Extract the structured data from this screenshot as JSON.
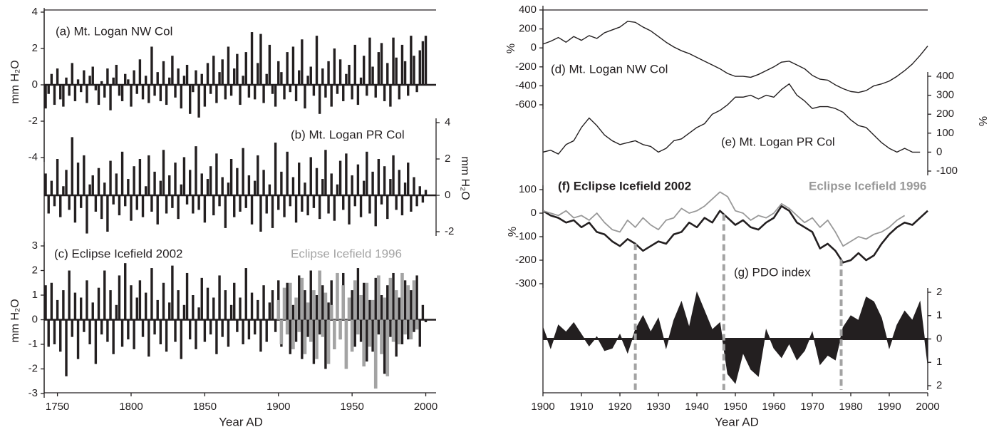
{
  "chart_data": [
    {
      "type": "bar",
      "xlabel": "Year AD",
      "xlim": [
        1741,
        2007
      ],
      "xticks": [
        1750,
        1800,
        1850,
        1900,
        1950,
        2000
      ],
      "x": [
        1742,
        1744,
        1746,
        1748,
        1750,
        1752,
        1754,
        1756,
        1758,
        1760,
        1762,
        1764,
        1766,
        1768,
        1770,
        1772,
        1774,
        1776,
        1778,
        1780,
        1782,
        1784,
        1786,
        1788,
        1790,
        1792,
        1794,
        1796,
        1798,
        1800,
        1802,
        1804,
        1806,
        1808,
        1810,
        1812,
        1814,
        1816,
        1818,
        1820,
        1822,
        1824,
        1826,
        1828,
        1830,
        1832,
        1834,
        1836,
        1838,
        1840,
        1842,
        1844,
        1846,
        1848,
        1850,
        1852,
        1854,
        1856,
        1858,
        1860,
        1862,
        1864,
        1866,
        1868,
        1870,
        1872,
        1874,
        1876,
        1878,
        1880,
        1882,
        1884,
        1886,
        1888,
        1890,
        1892,
        1894,
        1896,
        1898,
        1900,
        1902,
        1904,
        1906,
        1908,
        1910,
        1912,
        1914,
        1916,
        1918,
        1920,
        1922,
        1924,
        1926,
        1928,
        1930,
        1932,
        1934,
        1936,
        1938,
        1940,
        1942,
        1944,
        1946,
        1948,
        1950,
        1952,
        1954,
        1956,
        1958,
        1960,
        1962,
        1964,
        1966,
        1968,
        1970,
        1972,
        1974,
        1976,
        1978,
        1980,
        1982,
        1984,
        1986,
        1988,
        1990,
        1992,
        1994,
        1996,
        1998,
        2000
      ],
      "series": [
        {
          "name": "(a) Mt. Logan NW Col",
          "color": "#231f20",
          "axis": "y",
          "ylabel": "mm H₂O",
          "ylim": [
            -4,
            4
          ],
          "yticks": [
            -4,
            -2,
            0,
            2,
            4
          ],
          "values": [
            -1.3,
            -0.5,
            0.6,
            -1.1,
            0.9,
            -0.8,
            -1.2,
            0.4,
            -0.6,
            1.2,
            -0.9,
            0.3,
            -0.4,
            0.8,
            -1.0,
            0.5,
            1.0,
            -0.3,
            -1.1,
            0.2,
            -0.7,
            0.9,
            -1.4,
            0.4,
            1.1,
            -0.6,
            -0.9,
            0.6,
            0.3,
            -1.2,
            0.8,
            -0.5,
            1.4,
            -0.8,
            0.5,
            -1.0,
            2.1,
            -0.6,
            0.7,
            -0.9,
            1.3,
            -1.1,
            0.4,
            1.6,
            -0.7,
            0.9,
            -1.3,
            0.5,
            1.1,
            -1.6,
            -0.4,
            0.8,
            -1.8,
            0.6,
            -1.2,
            1.2,
            -0.5,
            1.6,
            -1.0,
            0.7,
            1.4,
            -0.8,
            2.1,
            -0.6,
            0.9,
            1.7,
            -1.1,
            0.5,
            1.8,
            -0.7,
            2.9,
            -0.8,
            1.2,
            2.8,
            -1.0,
            0.6,
            2.2,
            -0.5,
            -1.2,
            1.3,
            0.7,
            -0.8,
            1.8,
            -0.4,
            2.1,
            -0.9,
            0.8,
            2.5,
            -1.3,
            0.5,
            1.0,
            -0.6,
            2.7,
            -1.6,
            0.9,
            -0.7,
            1.3,
            -1.2,
            2.0,
            -0.5,
            1.4,
            -0.9,
            0.6,
            1.1,
            -0.8,
            2.2,
            -1.1,
            0.4,
            1.6,
            -0.6,
            2.6,
            1.0,
            -0.7,
            1.8,
            2.3,
            -0.9,
            1.2,
            -1.2,
            2.6,
            1.5,
            -0.8,
            2.2,
            1.3,
            -0.6,
            2.7,
            1.6,
            -0.4,
            1.9,
            2.4,
            2.7
          ]
        },
        {
          "name": "(b) Mt. Logan PR Col",
          "color": "#231f20",
          "axis": "y2",
          "ylabel": "mm H₂O",
          "ylim": [
            -4,
            4
          ],
          "yticks": [
            -2,
            0,
            2,
            4
          ],
          "values": [
            1.2,
            -1.0,
            0.8,
            -0.6,
            2.0,
            -1.2,
            0.5,
            1.4,
            -0.8,
            3.2,
            -1.5,
            1.8,
            -0.7,
            2.2,
            -2.1,
            0.6,
            1.1,
            -0.9,
            1.5,
            -1.3,
            0.7,
            -2.0,
            1.9,
            -0.5,
            1.2,
            -1.1,
            2.4,
            -0.6,
            0.9,
            -1.4,
            1.6,
            -0.8,
            2.0,
            -1.2,
            0.5,
            2.2,
            -0.9,
            1.3,
            -1.6,
            0.8,
            2.5,
            -1.0,
            1.1,
            -0.7,
            1.8,
            -1.3,
            0.6,
            2.1,
            -0.5,
            1.4,
            -1.0,
            2.7,
            -0.8,
            1.2,
            -1.5,
            0.9,
            1.6,
            -1.1,
            2.3,
            -0.6,
            1.0,
            -1.8,
            0.7,
            2.0,
            -1.2,
            1.5,
            -0.9,
            2.6,
            -0.7,
            1.1,
            -1.6,
            0.8,
            2.2,
            -2.0,
            1.4,
            -1.0,
            0.6,
            -1.8,
            2.9,
            -0.8,
            1.3,
            -1.2,
            2.4,
            -0.6,
            1.0,
            -1.5,
            1.8,
            -0.9,
            0.7,
            -1.1,
            2.1,
            -0.7,
            1.5,
            -1.3,
            0.9,
            2.5,
            -1.0,
            1.2,
            -1.4,
            0.6,
            1.9,
            -0.8,
            2.3,
            -1.6,
            1.1,
            -0.6,
            1.7,
            -1.2,
            0.8,
            2.4,
            -1.0,
            1.3,
            -1.7,
            2.0,
            -0.5,
            1.6,
            -1.3,
            0.9,
            2.2,
            -0.8,
            1.4,
            -1.1,
            0.7,
            1.8,
            -0.9,
            1.0,
            -0.6,
            0.5,
            -0.4,
            0.3
          ]
        },
        {
          "name": "(c) Eclipse Icefield 2002",
          "color": "#231f20",
          "axis": "y",
          "ylabel": "mm H₂O",
          "ylim": [
            -3,
            3
          ],
          "yticks": [
            -3,
            -2,
            -1,
            0,
            1,
            2,
            3
          ],
          "values": [
            1.4,
            -1.1,
            1.5,
            -1.0,
            0.8,
            -1.3,
            1.2,
            -2.3,
            2.0,
            -0.7,
            1.1,
            -1.6,
            0.9,
            -0.5,
            1.6,
            -1.0,
            0.7,
            -1.8,
            1.3,
            -0.6,
            2.0,
            -0.9,
            1.2,
            -1.4,
            0.6,
            1.8,
            -1.1,
            2.3,
            -0.8,
            1.4,
            -1.2,
            0.9,
            1.6,
            -0.7,
            1.1,
            -1.5,
            2.1,
            -0.6,
            0.8,
            -1.0,
            1.5,
            -1.3,
            0.7,
            2.2,
            -0.9,
            1.2,
            -1.6,
            0.6,
            1.9,
            -0.8,
            1.0,
            -1.2,
            0.5,
            1.7,
            -0.9,
            1.3,
            -0.6,
            0.9,
            -1.4,
            1.8,
            -0.7,
            1.2,
            -1.1,
            0.6,
            1.5,
            -0.5,
            0.9,
            -1.0,
            2.1,
            -0.8,
            1.1,
            -0.6,
            0.8,
            -1.3,
            1.4,
            -0.9,
            0.7,
            1.2,
            -0.5,
            1.6,
            -1.1,
            0.8,
            1.5,
            -1.4,
            0.6,
            -0.9,
            1.8,
            -1.6,
            1.2,
            -0.7,
            2.0,
            -1.8,
            1.0,
            -0.6,
            1.4,
            -2.0,
            0.7,
            1.6,
            -1.2,
            0.9,
            -0.8,
            1.9,
            -1.5,
            0.6,
            1.2,
            -1.1,
            2.1,
            -0.9,
            1.5,
            -1.7,
            0.8,
            -1.3,
            1.7,
            -0.6,
            1.0,
            -2.2,
            1.4,
            -0.7,
            1.9,
            -1.5,
            0.9,
            -1.0,
            1.6,
            -0.8,
            1.2,
            -0.5,
            1.8,
            -1.1,
            0.6,
            -0.1
          ]
        },
        {
          "name": "Eclipse Icefield 1996",
          "color": "#a3a3a3",
          "x": [
            1900,
            1902,
            1904,
            1906,
            1908,
            1910,
            1912,
            1914,
            1916,
            1918,
            1920,
            1922,
            1924,
            1926,
            1928,
            1930,
            1932,
            1934,
            1936,
            1938,
            1940,
            1942,
            1944,
            1946,
            1948,
            1950,
            1952,
            1954,
            1956,
            1958,
            1960,
            1962,
            1964,
            1966,
            1968,
            1970,
            1972,
            1974,
            1976,
            1978,
            1980,
            1982,
            1984,
            1986,
            1988,
            1990,
            1992,
            1994
          ],
          "values": [
            0.8,
            -1.0,
            1.3,
            -0.6,
            1.5,
            -1.2,
            0.9,
            -0.5,
            1.7,
            -1.4,
            0.7,
            -0.9,
            1.2,
            -1.6,
            2.0,
            -0.7,
            1.1,
            -1.8,
            0.6,
            -1.2,
            1.9,
            -0.8,
            1.4,
            -2.0,
            0.9,
            -1.3,
            1.6,
            -0.6,
            1.0,
            -1.9,
            1.5,
            -1.1,
            0.8,
            -2.8,
            1.8,
            -1.4,
            0.9,
            -2.3,
            1.7,
            -0.9,
            1.2,
            -1.0,
            1.9,
            -0.6,
            1.4,
            -0.8,
            1.6,
            -0.4
          ]
        }
      ]
    },
    {
      "type": "line",
      "xlabel": "Year AD",
      "xlim": [
        1900,
        2000
      ],
      "xticks": [
        1900,
        1910,
        1920,
        1930,
        1940,
        1950,
        1960,
        1970,
        1980,
        1990,
        2000
      ],
      "vlines": [
        1924,
        1947,
        1977.5
      ],
      "x": [
        1900,
        1902,
        1904,
        1906,
        1908,
        1910,
        1912,
        1914,
        1916,
        1918,
        1920,
        1922,
        1924,
        1926,
        1928,
        1930,
        1932,
        1934,
        1936,
        1938,
        1940,
        1942,
        1944,
        1946,
        1948,
        1950,
        1952,
        1954,
        1956,
        1958,
        1960,
        1962,
        1964,
        1966,
        1968,
        1970,
        1972,
        1974,
        1976,
        1978,
        1980,
        1982,
        1984,
        1986,
        1988,
        1990,
        1992,
        1994,
        1996,
        1998,
        2000
      ],
      "series": [
        {
          "name": "(d) Mt. Logan NW Col",
          "color": "#231f20",
          "axis": "y",
          "ylabel": "%",
          "ylim": [
            -600,
            400
          ],
          "yticks": [
            -600,
            -400,
            -200,
            0,
            200,
            400
          ],
          "values": [
            40,
            70,
            110,
            60,
            120,
            80,
            130,
            100,
            160,
            190,
            220,
            280,
            270,
            220,
            180,
            120,
            60,
            10,
            -30,
            -60,
            -100,
            -140,
            -180,
            -220,
            -270,
            -300,
            -300,
            -310,
            -280,
            -240,
            -200,
            -150,
            -140,
            -180,
            -220,
            -290,
            -330,
            -340,
            -390,
            -430,
            -460,
            -470,
            -450,
            -400,
            -380,
            -350,
            -300,
            -240,
            -170,
            -80,
            20
          ]
        },
        {
          "name": "(e) Mt. Logan PR Col",
          "color": "#231f20",
          "axis": "y2",
          "ylabel": "%",
          "ylim": [
            -100,
            400
          ],
          "yticks": [
            -100,
            0,
            100,
            200,
            300,
            400
          ],
          "values": [
            0,
            10,
            -10,
            40,
            60,
            130,
            180,
            140,
            90,
            60,
            40,
            50,
            60,
            40,
            30,
            0,
            20,
            60,
            70,
            100,
            130,
            150,
            200,
            220,
            250,
            290,
            290,
            300,
            280,
            300,
            290,
            330,
            360,
            300,
            270,
            230,
            240,
            240,
            230,
            210,
            170,
            140,
            130,
            90,
            50,
            20,
            0,
            20,
            0,
            0,
            null
          ]
        },
        {
          "name": "(f) Eclipse Icefield 2002",
          "color": "#231f20",
          "bold": true,
          "axis": "y",
          "ylabel": "%",
          "ylim": [
            -300,
            100
          ],
          "yticks": [
            -300,
            -200,
            -100,
            0,
            100
          ],
          "values": [
            10,
            -10,
            -20,
            -40,
            -30,
            -60,
            -40,
            -80,
            -90,
            -120,
            -140,
            -110,
            -130,
            -160,
            -140,
            -120,
            -130,
            -90,
            -80,
            -40,
            -60,
            -20,
            -40,
            10,
            -20,
            -50,
            -30,
            -60,
            -70,
            -40,
            -20,
            30,
            10,
            -40,
            -60,
            -80,
            -150,
            -130,
            -160,
            -210,
            -200,
            -170,
            -200,
            -180,
            -130,
            -90,
            -60,
            -40,
            -50,
            -20,
            10
          ]
        },
        {
          "name": "Eclipse Icefield 1996",
          "color": "#999999",
          "bold": true,
          "values": [
            10,
            0,
            -10,
            10,
            -20,
            -10,
            -30,
            0,
            -40,
            -70,
            -80,
            -30,
            -60,
            -20,
            -50,
            -70,
            -30,
            -20,
            20,
            0,
            10,
            30,
            60,
            90,
            70,
            10,
            0,
            -30,
            -10,
            -20,
            0,
            40,
            20,
            -10,
            -40,
            -20,
            -60,
            -30,
            -80,
            -140,
            -120,
            -100,
            -110,
            -90,
            -80,
            -60,
            -30,
            -10,
            null,
            null,
            null
          ]
        },
        {
          "name": "(g) PDO index",
          "type": "area",
          "color": "#231f20",
          "axis": "y2",
          "ylim": [
            -2,
            2
          ],
          "yticks": [
            {
              "value": -2,
              "label": "2"
            },
            {
              "value": -1,
              "label": "1"
            },
            0,
            1,
            2
          ],
          "values": [
            0.5,
            -0.4,
            0.6,
            0.3,
            0.7,
            0.2,
            -0.3,
            0.1,
            -0.5,
            -0.4,
            0.2,
            -0.6,
            0.4,
            1.0,
            0.3,
            0.9,
            -0.4,
            0.8,
            1.6,
            0.5,
            2.0,
            1.2,
            0.4,
            0.7,
            -1.5,
            -1.9,
            -0.6,
            -1.3,
            -1.6,
            0.4,
            -0.4,
            -0.8,
            -0.2,
            -0.9,
            -0.5,
            0.3,
            -1.1,
            -0.7,
            -0.9,
            0.5,
            1.0,
            0.8,
            1.8,
            1.6,
            0.9,
            -0.4,
            0.6,
            1.2,
            0.8,
            1.6,
            -1.1
          ]
        }
      ]
    }
  ]
}
